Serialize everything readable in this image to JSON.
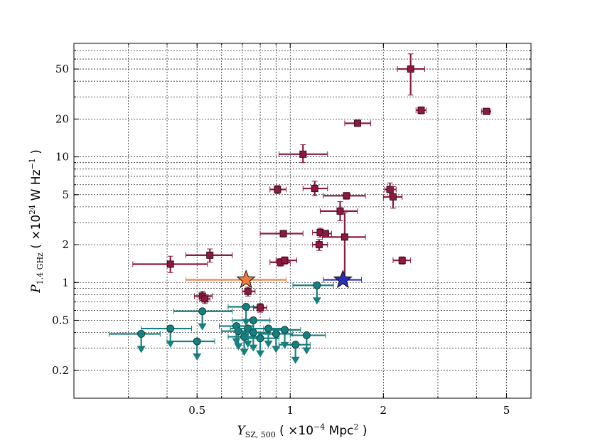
{
  "chart_data": {
    "type": "scatter",
    "title": "",
    "xscale": "log",
    "yscale": "log",
    "xlim": [
      0.2,
      6.0
    ],
    "ylim": [
      0.12,
      80
    ],
    "grid": true,
    "xticks": [
      {
        "value": 0.5,
        "label": "0.5"
      },
      {
        "value": 1,
        "label": "1"
      },
      {
        "value": 2,
        "label": "2"
      },
      {
        "value": 5,
        "label": "5"
      }
    ],
    "yticks": [
      {
        "value": 0.2,
        "label": "0.2"
      },
      {
        "value": 0.5,
        "label": "0.5"
      },
      {
        "value": 1,
        "label": "1"
      },
      {
        "value": 2,
        "label": "2"
      },
      {
        "value": 5,
        "label": "5"
      },
      {
        "value": 10,
        "label": "10"
      },
      {
        "value": 20,
        "label": "20"
      },
      {
        "value": 50,
        "label": "50"
      }
    ],
    "xlabel": {
      "var": "Y",
      "sub": "SZ, 500",
      "open": " ( ×10",
      "exp": "−4",
      "unit": " Mpc",
      "unit_exp": "2",
      "close": " )"
    },
    "ylabel": {
      "var": "P",
      "sub": "1.4 GHz",
      "open": " ( ×10",
      "exp": "24",
      "unit": " W Hz",
      "unit_exp": "−1",
      "close": " )"
    },
    "series": [
      {
        "name": "detections",
        "marker": "square",
        "color": "#8b1a3f",
        "points": [
          {
            "x": 0.41,
            "y": 1.4,
            "xerr": [
              0.31,
              0.54
            ],
            "yerr": [
              1.2,
              1.62
            ]
          },
          {
            "x": 0.55,
            "y": 1.65,
            "xerr": [
              0.46,
              0.65
            ],
            "yerr": [
              1.45,
              1.85
            ]
          },
          {
            "x": 0.52,
            "y": 0.78,
            "xerr": [
              0.49,
              0.56
            ],
            "yerr": [
              0.72,
              0.85
            ]
          },
          {
            "x": 0.53,
            "y": 0.74,
            "xerr": [
              0.51,
              0.55
            ],
            "yerr": [
              0.68,
              0.8
            ]
          },
          {
            "x": 0.73,
            "y": 0.85,
            "xerr": [
              0.7,
              0.77
            ],
            "yerr": [
              0.78,
              0.92
            ]
          },
          {
            "x": 0.8,
            "y": 0.63,
            "xerr": [
              0.76,
              0.84
            ],
            "yerr": [
              0.58,
              0.68
            ]
          },
          {
            "x": 0.91,
            "y": 5.5,
            "xerr": [
              0.86,
              0.97
            ],
            "yerr": [
              5.1,
              5.9
            ]
          },
          {
            "x": 0.95,
            "y": 2.45,
            "xerr": [
              0.8,
              1.1
            ],
            "yerr": [
              2.3,
              2.6
            ]
          },
          {
            "x": 0.93,
            "y": 1.45,
            "xerr": [
              0.86,
              1.0
            ],
            "yerr": [
              1.35,
              1.55
            ]
          },
          {
            "x": 0.96,
            "y": 1.5,
            "xerr": [
              0.9,
              1.05
            ],
            "yerr": [
              1.4,
              1.6
            ]
          },
          {
            "x": 1.1,
            "y": 10.5,
            "xerr": [
              0.92,
              1.32
            ],
            "yerr": [
              9.0,
              12.5
            ]
          },
          {
            "x": 1.2,
            "y": 5.6,
            "xerr": [
              1.1,
              1.32
            ],
            "yerr": [
              4.9,
              6.4
            ]
          },
          {
            "x": 1.25,
            "y": 2.5,
            "xerr": [
              1.18,
              1.32
            ],
            "yerr": [
              2.3,
              2.7
            ]
          },
          {
            "x": 1.24,
            "y": 2.0,
            "xerr": [
              1.18,
              1.32
            ],
            "yerr": [
              1.8,
              2.2
            ]
          },
          {
            "x": 1.3,
            "y": 2.45,
            "xerr": [
              1.24,
              1.36
            ],
            "yerr": [
              2.3,
              2.6
            ]
          },
          {
            "x": 1.45,
            "y": 3.7,
            "xerr": [
              1.25,
              1.65
            ],
            "yerr": [
              3.1,
              4.4
            ]
          },
          {
            "x": 1.52,
            "y": 4.9,
            "xerr": [
              1.28,
              1.75
            ],
            "yerr": [
              4.6,
              5.2
            ]
          },
          {
            "x": 1.5,
            "y": 2.3,
            "xerr": [
              1.27,
              1.75
            ],
            "yerr": [
              1.0,
              3.6
            ]
          },
          {
            "x": 1.65,
            "y": 18.5,
            "xerr": [
              1.5,
              1.82
            ],
            "yerr": [
              17.5,
              19.5
            ]
          },
          {
            "x": 2.1,
            "y": 5.5,
            "xerr": [
              2.02,
              2.2
            ],
            "yerr": [
              4.8,
              6.2
            ]
          },
          {
            "x": 2.15,
            "y": 4.8,
            "xerr": [
              2.0,
              2.3
            ],
            "yerr": [
              3.9,
              5.8
            ]
          },
          {
            "x": 2.3,
            "y": 1.5,
            "xerr": [
              2.15,
              2.45
            ],
            "yerr": [
              1.4,
              1.6
            ]
          },
          {
            "x": 2.45,
            "y": 50,
            "xerr": [
              2.22,
              2.72
            ],
            "yerr": [
              31,
              66
            ]
          },
          {
            "x": 2.65,
            "y": 23.5,
            "xerr": [
              2.55,
              2.75
            ],
            "yerr": [
              22,
              25
            ]
          },
          {
            "x": 4.3,
            "y": 23,
            "xerr": [
              4.15,
              4.45
            ],
            "yerr": [
              22,
              24
            ]
          }
        ]
      },
      {
        "name": "upper limits",
        "marker": "circle-with-down-arrow",
        "color": "#17807f",
        "points": [
          {
            "x": 0.33,
            "y": 0.39,
            "xerr": [
              0.26,
              0.38
            ]
          },
          {
            "x": 0.41,
            "y": 0.43,
            "xerr": [
              0.33,
              0.48
            ]
          },
          {
            "x": 0.52,
            "y": 0.59,
            "xerr": [
              0.42,
              0.65
            ]
          },
          {
            "x": 0.5,
            "y": 0.34,
            "xerr": [
              0.4,
              0.57
            ]
          },
          {
            "x": 0.72,
            "y": 0.64,
            "xerr": [
              0.63,
              0.81
            ]
          },
          {
            "x": 0.76,
            "y": 0.5,
            "xerr": [
              0.65,
              0.86
            ]
          },
          {
            "x": 0.67,
            "y": 0.45,
            "xerr": [
              0.59,
              0.76
            ]
          },
          {
            "x": 0.68,
            "y": 0.41,
            "xerr": [
              0.6,
              0.77
            ]
          },
          {
            "x": 0.71,
            "y": 0.37,
            "xerr": [
              0.63,
              0.81
            ]
          },
          {
            "x": 0.73,
            "y": 0.43,
            "xerr": [
              0.64,
              0.82
            ]
          },
          {
            "x": 0.76,
            "y": 0.4,
            "xerr": [
              0.67,
              0.86
            ]
          },
          {
            "x": 0.8,
            "y": 0.36,
            "xerr": [
              0.7,
              0.92
            ]
          },
          {
            "x": 0.85,
            "y": 0.43,
            "xerr": [
              0.74,
              0.97
            ]
          },
          {
            "x": 0.9,
            "y": 0.39,
            "xerr": [
              0.79,
              1.02
            ]
          },
          {
            "x": 0.96,
            "y": 0.42,
            "xerr": [
              0.84,
              1.08
            ]
          },
          {
            "x": 1.04,
            "y": 0.32,
            "xerr": [
              0.92,
              1.16
            ]
          },
          {
            "x": 1.13,
            "y": 0.38,
            "xerr": [
              1.0,
              1.3
            ]
          },
          {
            "x": 1.22,
            "y": 0.95,
            "xerr": [
              1.02,
              1.38
            ]
          }
        ]
      },
      {
        "name": "orange star",
        "marker": "star",
        "color": "#f27b3c",
        "points": [
          {
            "x": 0.72,
            "y": 1.05,
            "xerr": [
              0.46,
              0.97
            ]
          }
        ]
      },
      {
        "name": "blue star",
        "marker": "star",
        "color": "#2a2fb8",
        "points": [
          {
            "x": 1.48,
            "y": 1.05,
            "xerr": [
              1.28,
              1.7
            ]
          }
        ]
      }
    ]
  }
}
